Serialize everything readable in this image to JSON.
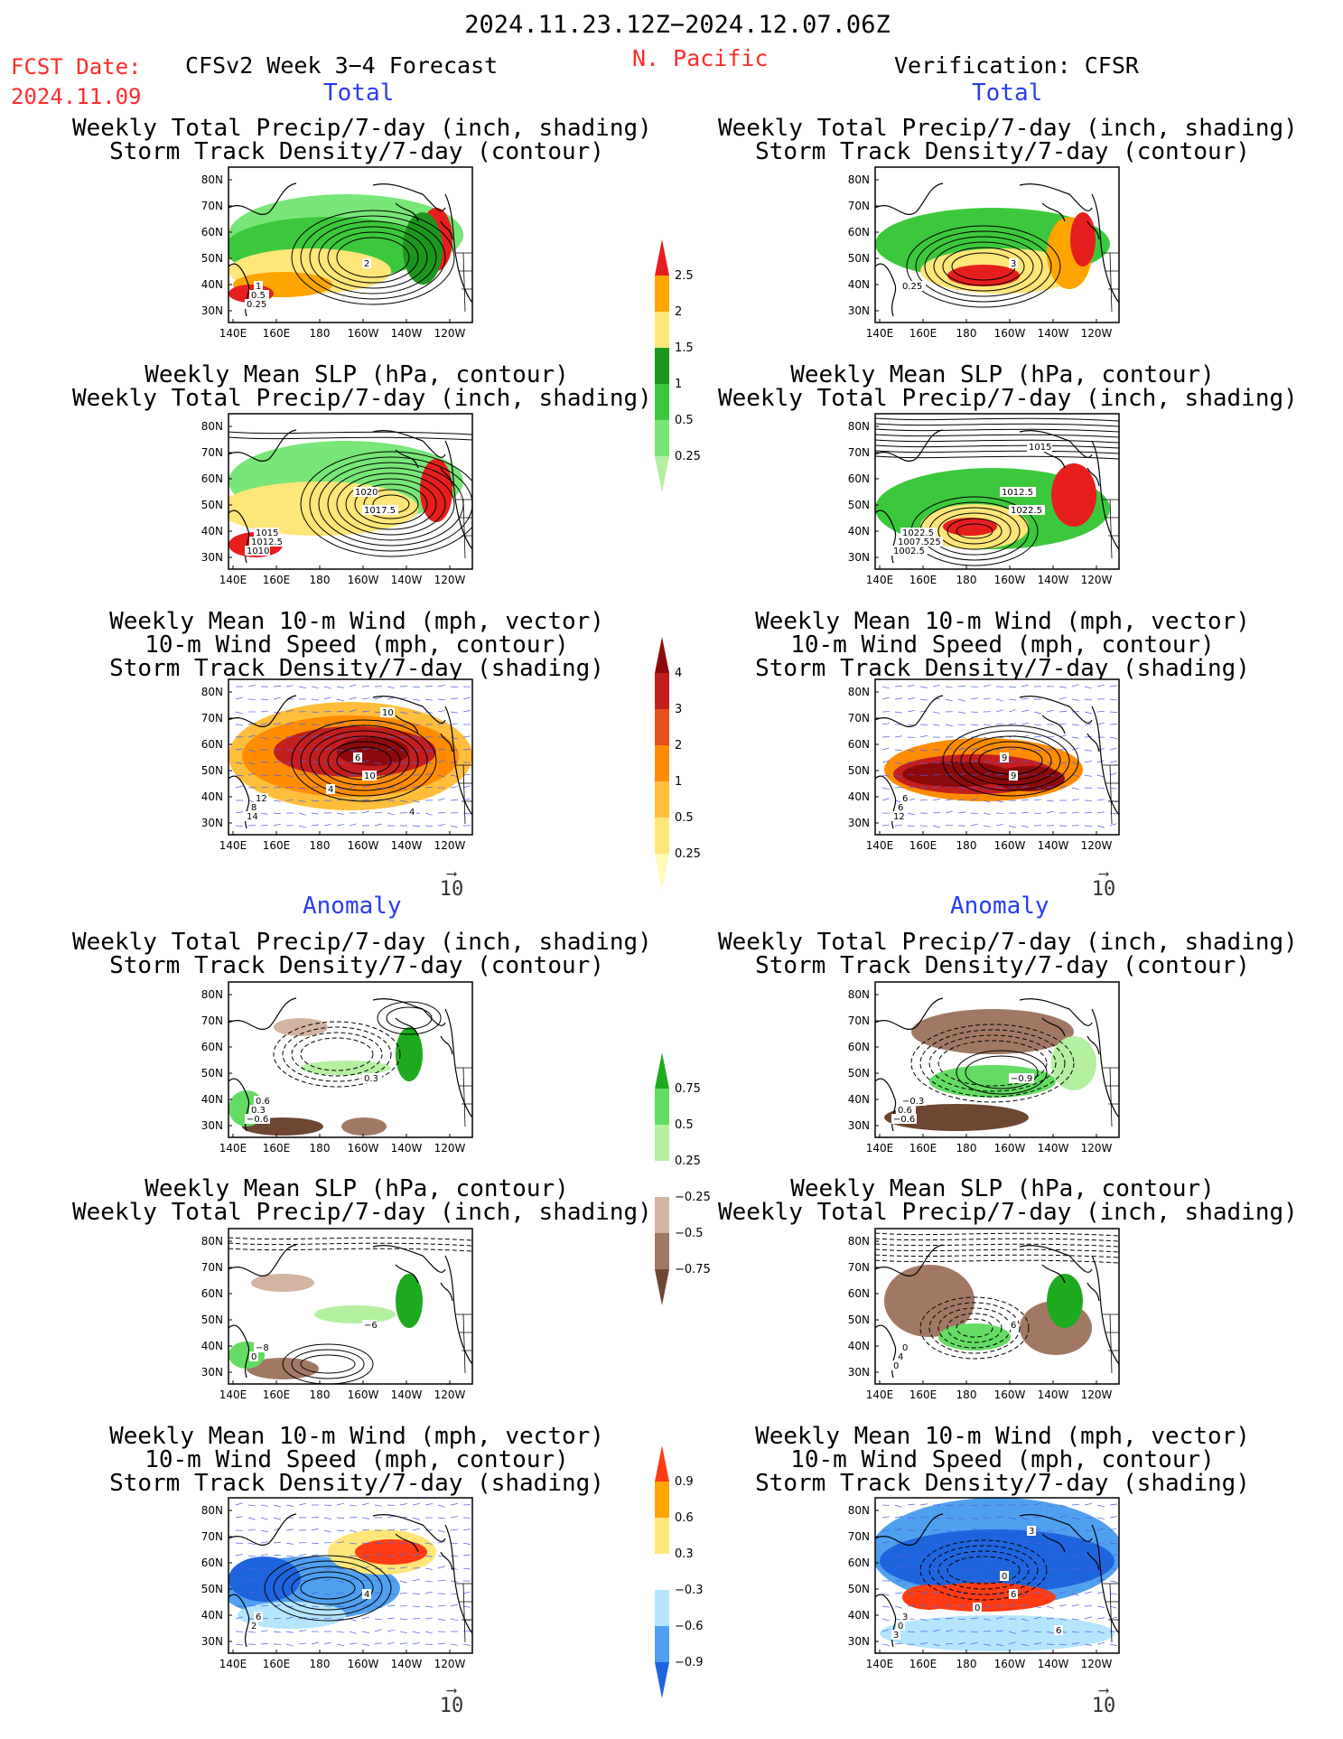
{
  "header": {
    "date_range": "2024.11.23.12Z−2024.12.07.06Z",
    "fcst_label": "FCST Date:",
    "fcst_date": "2024.11.09",
    "model_title": "CFSv2 Week 3−4 Forecast",
    "region": "N. Pacific",
    "verification": "Verification: CFSR"
  },
  "sections": {
    "total": "Total",
    "anomaly": "Anomaly"
  },
  "panel_titles": {
    "precip_storm": [
      "Weekly Total Precip/7-day (inch, shading)",
      "Storm Track Density/7-day (contour)"
    ],
    "slp_precip": [
      "Weekly Mean SLP (hPa, contour)",
      "Weekly Total Precip/7-day (inch, shading)"
    ],
    "wind_storm": [
      "Weekly Mean 10-m Wind (mph, vector)",
      "10-m Wind Speed (mph, contour)",
      "Storm Track Density/7-day (shading)"
    ]
  },
  "axes": {
    "lat_labels": [
      "80N",
      "70N",
      "60N",
      "50N",
      "40N",
      "30N"
    ],
    "lon_labels": [
      "140E",
      "160E",
      "180",
      "160W",
      "140W",
      "120W"
    ]
  },
  "vector_ref": "10",
  "colorbars": {
    "precip_total": {
      "labels": [
        "0.25",
        "0.5",
        "1",
        "1.5",
        "2",
        "2.5"
      ],
      "colors": [
        "#b4f0a0",
        "#78e678",
        "#3cc83c",
        "#1e961e",
        "#ffe678",
        "#ffa500",
        "#e61e1e"
      ]
    },
    "storm_total": {
      "labels": [
        "0.25",
        "0.5",
        "1",
        "2",
        "3",
        "4"
      ],
      "colors": [
        "#fffab4",
        "#ffe678",
        "#ffbe3c",
        "#ff8c00",
        "#e6501e",
        "#c31e1e",
        "#8c0a0a"
      ]
    },
    "precip_anom": {
      "labels": [
        "−0.75",
        "−0.5",
        "−0.25",
        "0.25",
        "0.5",
        "0.75"
      ],
      "colors": [
        "#6e4632",
        "#a07864",
        "#d2b4a0",
        "#ffffff",
        "#b4f0a0",
        "#64dc64",
        "#1eaa1e"
      ]
    },
    "storm_anom": {
      "labels": [
        "−0.9",
        "−0.6",
        "−0.3",
        "0.3",
        "0.6",
        "0.9"
      ],
      "colors": [
        "#1e64dc",
        "#50a0f0",
        "#b4e6ff",
        "#ffffff",
        "#ffe678",
        "#ffa500",
        "#ff3c14"
      ]
    }
  },
  "panel_labels": {
    "fc_precip_total": [
      "2",
      "1",
      "0.5",
      "0.25"
    ],
    "ob_precip_total": [
      "3",
      "0.25"
    ],
    "fc_slp_total": [
      "1017.5",
      "1015",
      "1012.5",
      "1010",
      "1020"
    ],
    "ob_slp_total": [
      "1022.5",
      "1022.5",
      "1007.525",
      "1002.5",
      "1012.5",
      "1015"
    ],
    "fc_wind_total": [
      "10",
      "12",
      "8",
      "14",
      "6",
      "10",
      "4",
      "4"
    ],
    "ob_wind_total": [
      "9",
      "6",
      "6",
      "12",
      "9"
    ],
    "fc_precip_anom": [
      "0.3",
      "0.6",
      "0.3",
      "−0.6"
    ],
    "ob_precip_anom": [
      "−0.9",
      "−0.3",
      "0.6",
      "−0.6"
    ],
    "fc_slp_anom": [
      "−6",
      "−8",
      "0"
    ],
    "ob_slp_anom": [
      "6",
      "0",
      "4",
      "0"
    ],
    "fc_wind_anom": [
      "4",
      "6",
      "2"
    ],
    "ob_wind_anom": [
      "6",
      "3",
      "0",
      "3",
      "0",
      "3",
      "0",
      "6"
    ]
  }
}
